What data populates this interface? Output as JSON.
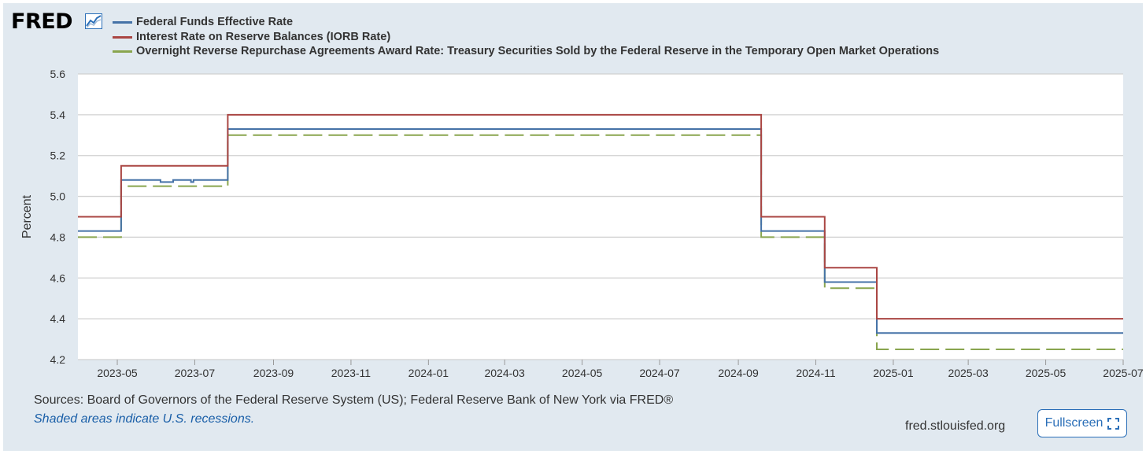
{
  "logo": {
    "text": "FRED",
    "icon": "chart-line-icon"
  },
  "chart_data": {
    "type": "line",
    "title": "",
    "ylabel": "Percent",
    "xlabel": "",
    "ylim": [
      4.2,
      5.6
    ],
    "xlim": [
      "2023-03-31",
      "2025-07-01"
    ],
    "yticks": [
      4.2,
      4.4,
      4.6,
      4.8,
      5.0,
      5.2,
      5.4,
      5.6
    ],
    "ytick_labels": [
      "4.2",
      "4.4",
      "4.6",
      "4.8",
      "5.0",
      "5.2",
      "5.4",
      "5.6"
    ],
    "xticks": [
      "2023-05-01",
      "2023-07-01",
      "2023-09-01",
      "2023-11-01",
      "2024-01-01",
      "2024-03-01",
      "2024-05-01",
      "2024-07-01",
      "2024-09-01",
      "2024-11-01",
      "2025-01-01",
      "2025-03-01",
      "2025-05-01",
      "2025-07-01"
    ],
    "xtick_labels": [
      "2023-05",
      "2023-07",
      "2023-09",
      "2023-11",
      "2024-01",
      "2024-03",
      "2024-05",
      "2024-07",
      "2024-09",
      "2024-11",
      "2025-01",
      "2025-03",
      "2025-05",
      "2025-07"
    ],
    "grid": true,
    "legend_position": "top-left",
    "series": [
      {
        "name": "Federal Funds Effective Rate",
        "color": "#4572a7",
        "dashed": false,
        "steps": [
          [
            "2023-03-31",
            4.83
          ],
          [
            "2023-05-04",
            5.08
          ],
          [
            "2023-06-02",
            5.08
          ],
          [
            "2023-06-04",
            5.07
          ],
          [
            "2023-06-07",
            5.07
          ],
          [
            "2023-06-14",
            5.08
          ],
          [
            "2023-06-28",
            5.07
          ],
          [
            "2023-06-30",
            5.08
          ],
          [
            "2023-07-27",
            5.33
          ],
          [
            "2024-09-19",
            4.83
          ],
          [
            "2024-11-08",
            4.58
          ],
          [
            "2024-12-19",
            4.33
          ],
          [
            "2025-07-01",
            4.33
          ]
        ]
      },
      {
        "name": "Interest Rate on Reserve Balances (IORB Rate)",
        "color": "#aa4643",
        "dashed": false,
        "steps": [
          [
            "2023-03-31",
            4.9
          ],
          [
            "2023-05-04",
            5.15
          ],
          [
            "2023-07-27",
            5.4
          ],
          [
            "2024-09-19",
            4.9
          ],
          [
            "2024-11-08",
            4.65
          ],
          [
            "2024-12-19",
            4.4
          ],
          [
            "2025-07-01",
            4.4
          ]
        ]
      },
      {
        "name": "Overnight Reverse Repurchase Agreements Award Rate: Treasury Securities Sold by the Federal Reserve in the Temporary Open Market Operations",
        "color": "#89a54e",
        "dashed": true,
        "steps": [
          [
            "2023-03-31",
            4.8
          ],
          [
            "2023-05-04",
            5.05
          ],
          [
            "2023-07-27",
            5.3
          ],
          [
            "2024-09-19",
            4.8
          ],
          [
            "2024-11-08",
            4.55
          ],
          [
            "2024-12-19",
            4.25
          ],
          [
            "2025-07-01",
            4.25
          ]
        ]
      }
    ]
  },
  "footer": {
    "sources": "Sources: Board of Governors of the Federal Reserve System (US); Federal Reserve Bank of New York via FRED®",
    "recession_note": "Shaded areas indicate U.S. recessions.",
    "site": "fred.stlouisfed.org",
    "fullscreen_label": "Fullscreen",
    "fullscreen_icon": "expand-icon"
  }
}
